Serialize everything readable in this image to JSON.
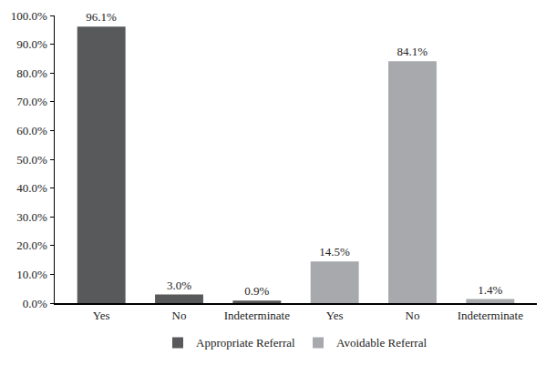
{
  "chart_data": {
    "type": "bar",
    "categories": [
      "Yes",
      "No",
      "Indeterminate",
      "Yes",
      "No",
      "Indeterminate"
    ],
    "series": [
      {
        "name": "Appropriate Referral",
        "color": "#58595b",
        "values": [
          96.1,
          3.0,
          0.9,
          null,
          null,
          null
        ],
        "value_labels": [
          "96.1%",
          "3.0%",
          "0.9%",
          null,
          null,
          null
        ]
      },
      {
        "name": "Avoidable Referral",
        "color": "#a7a9ac",
        "values": [
          null,
          null,
          null,
          14.5,
          84.1,
          1.4
        ],
        "value_labels": [
          null,
          null,
          null,
          "14.5%",
          "84.1%",
          "1.4%"
        ]
      }
    ],
    "ylim": [
      0,
      100
    ],
    "yticks": [
      {
        "value": 0,
        "label": "0.0%"
      },
      {
        "value": 10,
        "label": "10.0%"
      },
      {
        "value": 20,
        "label": "20.0%"
      },
      {
        "value": 30,
        "label": "30.0%"
      },
      {
        "value": 40,
        "label": "40.0%"
      },
      {
        "value": 50,
        "label": "50.0%"
      },
      {
        "value": 60,
        "label": "60.0%"
      },
      {
        "value": 70,
        "label": "70.0%"
      },
      {
        "value": 80,
        "label": "80.0%"
      },
      {
        "value": 90,
        "label": "90.0%"
      },
      {
        "value": 100,
        "label": "100.0%"
      }
    ],
    "grid": false,
    "legend": "bottom",
    "data_labels": true
  }
}
